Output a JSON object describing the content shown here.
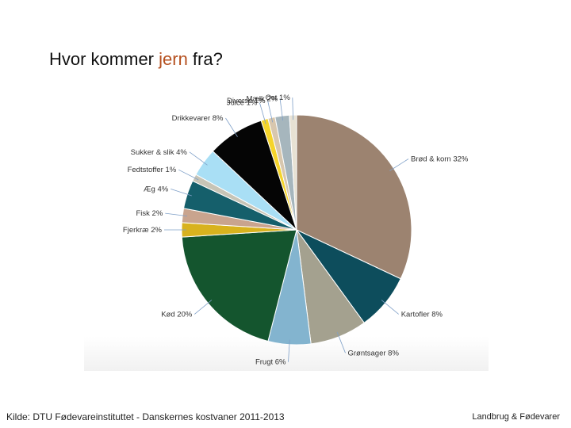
{
  "slide": {
    "title_pre": "Hvor kommer ",
    "title_accent": "jern",
    "title_post": " fra?",
    "accent_color": "#b5501f",
    "source": "Kilde: DTU Fødevareinstituttet - Danskernes kostvaner 2011-2013",
    "brand": "Landbrug & Fødevarer"
  },
  "chart_data": {
    "type": "pie",
    "title": "",
    "legend": "none",
    "slices": [
      {
        "label": "Brød & korn 32%",
        "value": 32,
        "color": "#9c8370"
      },
      {
        "label": "Kartofler 8%",
        "value": 8,
        "color": "#0d4d5c"
      },
      {
        "label": "Grøntsager 8%",
        "value": 8,
        "color": "#a4a18f"
      },
      {
        "label": "Frugt 6%",
        "value": 6,
        "color": "#83b4cf"
      },
      {
        "label": "Kød 20%",
        "value": 20,
        "color": "#14552e"
      },
      {
        "label": "Fjerkræ 2%",
        "value": 2,
        "color": "#d8b21e"
      },
      {
        "label": "Fisk 2%",
        "value": 2,
        "color": "#c9a48e"
      },
      {
        "label": "Æg 4%",
        "value": 4,
        "color": "#155f6b"
      },
      {
        "label": "Fedtstoffer 1%",
        "value": 1,
        "color": "#c7c4b6"
      },
      {
        "label": "Sukker & slik 4%",
        "value": 4,
        "color": "#a9dff5"
      },
      {
        "label": "Drikkevarer 8%",
        "value": 8,
        "color": "#050505"
      },
      {
        "label": "Juice 1%",
        "value": 1,
        "color": "#f5d42a"
      },
      {
        "label": "Diverse 1%",
        "value": 1,
        "color": "#d8c7ae"
      },
      {
        "label": "Mælk 2%",
        "value": 2,
        "color": "#a6b6bd"
      },
      {
        "label": "Ost 1%",
        "value": 1,
        "color": "#e7e1d3"
      }
    ]
  }
}
